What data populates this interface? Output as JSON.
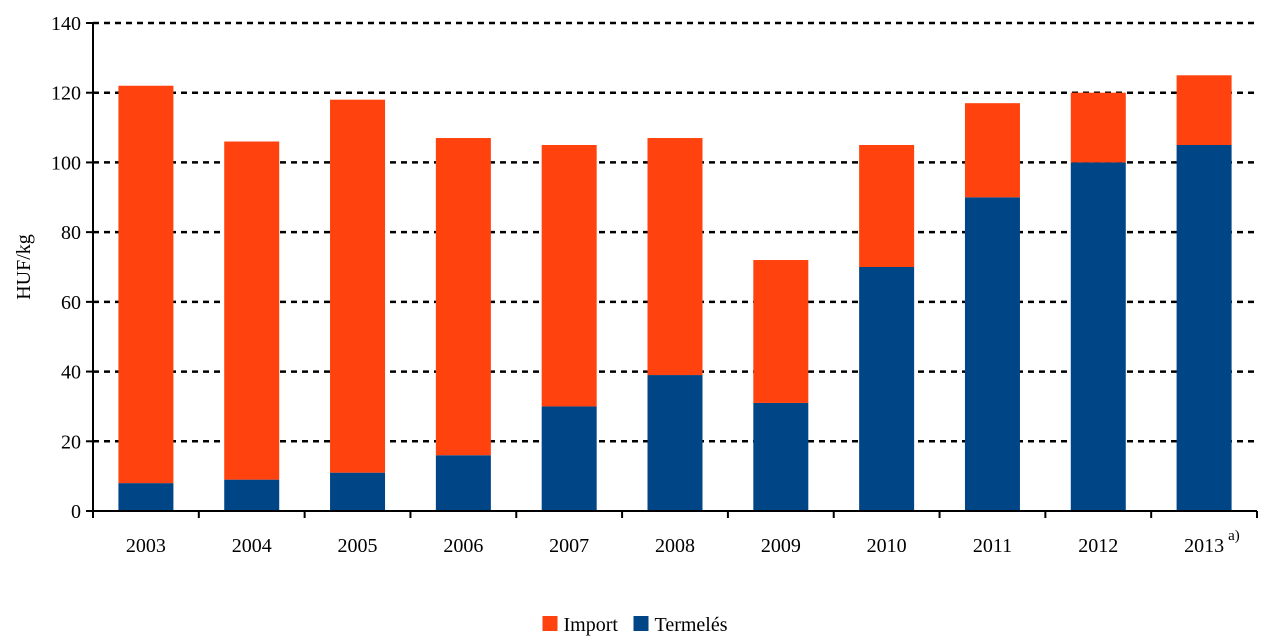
{
  "chart_data": {
    "type": "bar",
    "stacked": true,
    "categories": [
      "2003",
      "2004",
      "2005",
      "2006",
      "2007",
      "2008",
      "2009",
      "2010",
      "2011",
      "2012",
      "2013"
    ],
    "category_notes": [
      "",
      "",
      "",
      "",
      "",
      "",
      "",
      "",
      "",
      "",
      "a)"
    ],
    "series": [
      {
        "name": "Termelés",
        "color": "#004586",
        "values": [
          8,
          9,
          11,
          16,
          30,
          39,
          31,
          70,
          90,
          100,
          105
        ]
      },
      {
        "name": "Import",
        "color": "#FF420E",
        "values": [
          114,
          97,
          107,
          91,
          75,
          68,
          41,
          35,
          27,
          20,
          20
        ]
      }
    ],
    "legend_order": [
      "Import",
      "Termelés"
    ],
    "ylabel": "HUF/kg",
    "ylim": [
      0,
      140
    ],
    "yticks": [
      0,
      20,
      40,
      60,
      80,
      100,
      120,
      140
    ],
    "grid": "dashed",
    "legend_position": "bottom-center"
  }
}
